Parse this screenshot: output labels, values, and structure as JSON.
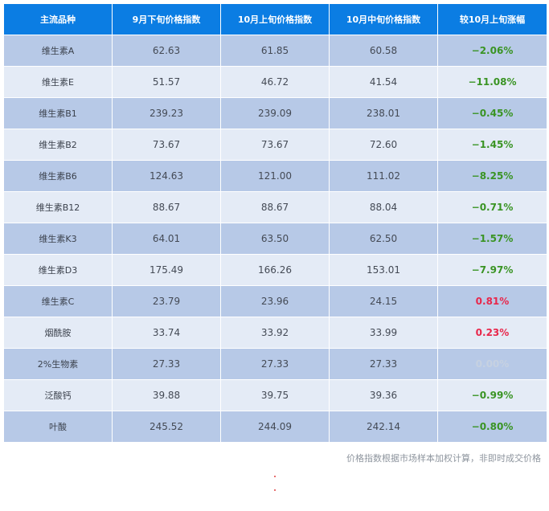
{
  "table": {
    "headers": [
      "主流品种",
      "9月下旬价格指数",
      "10月上旬价格指数",
      "10月中旬价格指数",
      "较10月上旬涨幅"
    ],
    "rows": [
      {
        "name": "维生素A",
        "late_sep": "62.63",
        "early_oct": "61.85",
        "mid_oct": "60.58",
        "change": "−2.06%",
        "trend": "down"
      },
      {
        "name": "维生素E",
        "late_sep": "51.57",
        "early_oct": "46.72",
        "mid_oct": "41.54",
        "change": "−11.08%",
        "trend": "down"
      },
      {
        "name": "维生素B1",
        "late_sep": "239.23",
        "early_oct": "239.09",
        "mid_oct": "238.01",
        "change": "−0.45%",
        "trend": "down"
      },
      {
        "name": "维生素B2",
        "late_sep": "73.67",
        "early_oct": "73.67",
        "mid_oct": "72.60",
        "change": "−1.45%",
        "trend": "down"
      },
      {
        "name": "维生素B6",
        "late_sep": "124.63",
        "early_oct": "121.00",
        "mid_oct": "111.02",
        "change": "−8.25%",
        "trend": "down"
      },
      {
        "name": "维生素B12",
        "late_sep": "88.67",
        "early_oct": "88.67",
        "mid_oct": "88.04",
        "change": "−0.71%",
        "trend": "down"
      },
      {
        "name": "维生素K3",
        "late_sep": "64.01",
        "early_oct": "63.50",
        "mid_oct": "62.50",
        "change": "−1.57%",
        "trend": "down"
      },
      {
        "name": "维生素D3",
        "late_sep": "175.49",
        "early_oct": "166.26",
        "mid_oct": "153.01",
        "change": "−7.97%",
        "trend": "down"
      },
      {
        "name": "维生素C",
        "late_sep": "23.79",
        "early_oct": "23.96",
        "mid_oct": "24.15",
        "change": "0.81%",
        "trend": "up"
      },
      {
        "name": "烟酰胺",
        "late_sep": "33.74",
        "early_oct": "33.92",
        "mid_oct": "33.99",
        "change": "0.23%",
        "trend": "up"
      },
      {
        "name": "2%生物素",
        "late_sep": "27.33",
        "early_oct": "27.33",
        "mid_oct": "27.33",
        "change": "0.00%",
        "trend": "flat"
      },
      {
        "name": "泛酸钙",
        "late_sep": "39.88",
        "early_oct": "39.75",
        "mid_oct": "39.36",
        "change": "−0.99%",
        "trend": "down"
      },
      {
        "name": "叶酸",
        "late_sep": "245.52",
        "early_oct": "244.09",
        "mid_oct": "242.14",
        "change": "−0.80%",
        "trend": "down"
      }
    ]
  },
  "footnote": "价格指数根据市场样本加权计算，非即时成交价格",
  "colors": {
    "header_bg": "#0b7de3",
    "row_dark": "#b7c9e7",
    "row_light": "#e4ebf6",
    "decrease": "#3a9424",
    "increase": "#e8274b",
    "unchanged": "#c6d1e1"
  }
}
